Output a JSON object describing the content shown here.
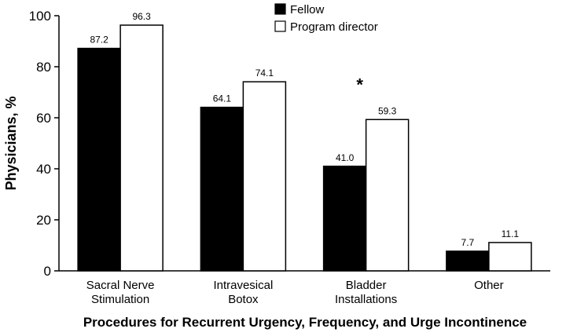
{
  "chart_data": {
    "type": "bar",
    "categories": [
      [
        "Sacral Nerve",
        "Stimulation"
      ],
      [
        "Intravesical",
        "Botox"
      ],
      [
        "Bladder",
        "Installations"
      ],
      [
        "Other"
      ]
    ],
    "series": [
      {
        "name": "Fellow",
        "values": [
          87.2,
          64.1,
          41.0,
          7.7
        ],
        "labels": [
          "87.2",
          "64.1",
          "41.0",
          "7.7"
        ],
        "color": "#000000"
      },
      {
        "name": "Program director",
        "values": [
          96.3,
          74.1,
          59.3,
          11.1
        ],
        "labels": [
          "96.3",
          "74.1",
          "59.3",
          "11.1"
        ],
        "color": "#ffffff"
      }
    ],
    "ylabel": "Physicians, %",
    "xlabel": "Procedures for Recurrent Urgency, Frequency, and Urge Incontinence",
    "ylim": [
      0,
      100
    ],
    "yticks": [
      0,
      20,
      40,
      60,
      80,
      100
    ],
    "grid": false,
    "legend": "top-center",
    "annotations": [
      {
        "text": "*",
        "category_index": 2,
        "y": 75
      }
    ]
  }
}
